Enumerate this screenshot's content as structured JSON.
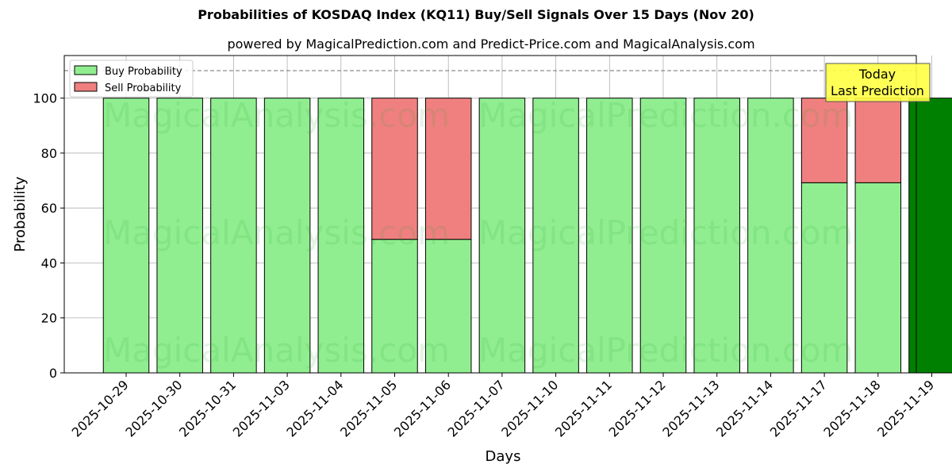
{
  "title": "Probabilities of KOSDAQ Index (KQ11) Buy/Sell Signals Over 15 Days (Nov 20)",
  "subtitle": "powered by MagicalPrediction.com and Predict-Price.com and MagicalAnalysis.com",
  "watermarks": [
    "MagicalAnalysis.com",
    "MagicalPrediction.com"
  ],
  "annotation": {
    "line1": "Today",
    "line2": "Last Prediction",
    "color": "#ffff44"
  },
  "colors": {
    "buy": "#90ee90",
    "sell": "#f08080",
    "today": "#008000"
  },
  "chart_data": {
    "type": "bar",
    "stacked": true,
    "title": "Probabilities of KOSDAQ Index (KQ11) Buy/Sell Signals Over 15 Days (Nov 20)",
    "subtitle": "powered by MagicalPrediction.com and Predict-Price.com and MagicalAnalysis.com",
    "xlabel": "Days",
    "ylabel": "Probability",
    "ylim": [
      0,
      115.5
    ],
    "yticks": [
      0,
      20,
      40,
      60,
      80,
      100
    ],
    "grid": true,
    "legend_position": "upper left",
    "reference_line": {
      "y": 110,
      "style": "dashed",
      "color": "#808080"
    },
    "categories": [
      "2025-10-29",
      "2025-10-30",
      "2025-10-31",
      "2025-11-03",
      "2025-11-04",
      "2025-11-05",
      "2025-11-06",
      "2025-11-07",
      "2025-11-10",
      "2025-11-11",
      "2025-11-12",
      "2025-11-13",
      "2025-11-14",
      "2025-11-17",
      "2025-11-18",
      "2025-11-19"
    ],
    "series": [
      {
        "name": "Buy Probability",
        "values": [
          100,
          100,
          100,
          100,
          100,
          48.6,
          48.6,
          100,
          100,
          100,
          100,
          100,
          100,
          69.2,
          69.2,
          100
        ]
      },
      {
        "name": "Sell Probability",
        "values": [
          0,
          0,
          0,
          0,
          0,
          51.4,
          51.4,
          0,
          0,
          0,
          0,
          0,
          0,
          30.8,
          30.8,
          0
        ]
      }
    ],
    "highlight": {
      "category": "2025-11-19",
      "label": "Today Last Prediction"
    }
  }
}
